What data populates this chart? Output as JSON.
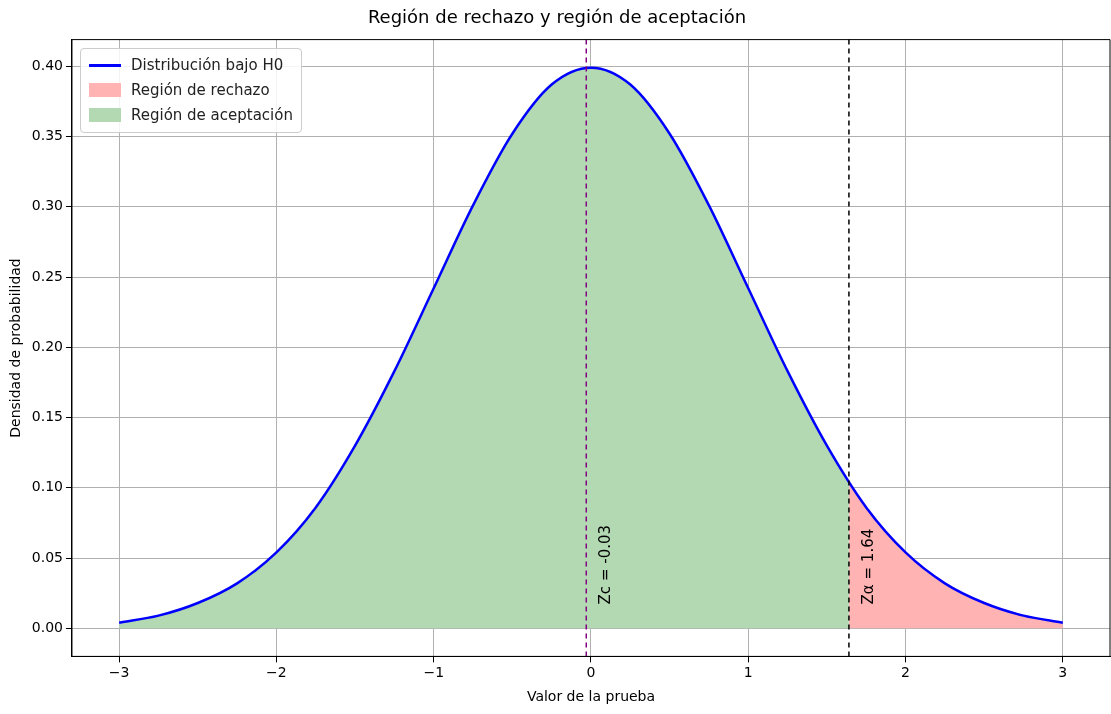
{
  "chart_data": {
    "type": "line",
    "title": "Región de rechazo y región de aceptación",
    "xlabel": "Valor de la prueba",
    "ylabel": "Densidad de probabilidad",
    "xlim": [
      -3.3,
      3.3
    ],
    "xticks": [
      {
        "value": -3,
        "label": "−3"
      },
      {
        "value": -2,
        "label": "−2"
      },
      {
        "value": -1,
        "label": "−1"
      },
      {
        "value": 0,
        "label": "0"
      },
      {
        "value": 1,
        "label": "1"
      },
      {
        "value": 2,
        "label": "2"
      },
      {
        "value": 3,
        "label": "3"
      }
    ],
    "ylim": [
      -0.02,
      0.419
    ],
    "yticks": [
      {
        "value": 0,
        "label": "0.00"
      },
      {
        "value": 0.05,
        "label": "0.05"
      },
      {
        "value": 0.1,
        "label": "0.10"
      },
      {
        "value": 0.15,
        "label": "0.15"
      },
      {
        "value": 0.2,
        "label": "0.20"
      },
      {
        "value": 0.25,
        "label": "0.25"
      },
      {
        "value": 0.3,
        "label": "0.30"
      },
      {
        "value": 0.35,
        "label": "0.35"
      },
      {
        "value": 0.4,
        "label": "0.40"
      }
    ],
    "grid": true,
    "legend": "top left",
    "marker": "none",
    "series": [
      {
        "name": "Distribución bajo H0",
        "type": "line",
        "color": "#0000ff",
        "x": [
          -3,
          -2.75,
          -2.5,
          -2.25,
          -2,
          -1.75,
          -1.5,
          -1.25,
          -1,
          -0.75,
          -0.5,
          -0.25,
          0,
          0.25,
          0.5,
          0.75,
          1,
          1.25,
          1.5,
          1.75,
          2,
          2.25,
          2.5,
          2.75,
          3
        ],
        "values": [
          0.004,
          0.009,
          0.018,
          0.032,
          0.054,
          0.086,
          0.13,
          0.183,
          0.242,
          0.301,
          0.352,
          0.387,
          0.399,
          0.387,
          0.352,
          0.301,
          0.242,
          0.183,
          0.13,
          0.086,
          0.054,
          0.032,
          0.018,
          0.009,
          0.004
        ]
      },
      {
        "name": "Región de rechazo",
        "type": "area",
        "color": "#ffb3b3",
        "x": [
          1.64,
          1.75,
          2,
          2.25,
          2.5,
          2.75,
          3
        ],
        "values": [
          0.104,
          0.086,
          0.054,
          0.032,
          0.018,
          0.009,
          0.004
        ]
      },
      {
        "name": "Región de aceptación",
        "type": "area",
        "color": "#b3d9b3",
        "x": [
          -3,
          -2.75,
          -2.5,
          -2.25,
          -2,
          -1.75,
          -1.5,
          -1.25,
          -1,
          -0.75,
          -0.5,
          -0.25,
          0,
          0.25,
          0.5,
          0.75,
          1,
          1.25,
          1.5,
          1.64
        ],
        "values": [
          0.004,
          0.009,
          0.018,
          0.032,
          0.054,
          0.086,
          0.13,
          0.183,
          0.242,
          0.301,
          0.352,
          0.387,
          0.399,
          0.387,
          0.352,
          0.301,
          0.242,
          0.183,
          0.13,
          0.104
        ]
      }
    ],
    "ref_lines": [
      {
        "axis": "x",
        "value": 1.64,
        "label": "Zα = 1.64",
        "color": "#000000",
        "line_style": "dashed"
      },
      {
        "axis": "x",
        "value": -0.03,
        "label": "Zc = -0.03",
        "color": "#800080",
        "line_style": "dashed"
      }
    ]
  }
}
